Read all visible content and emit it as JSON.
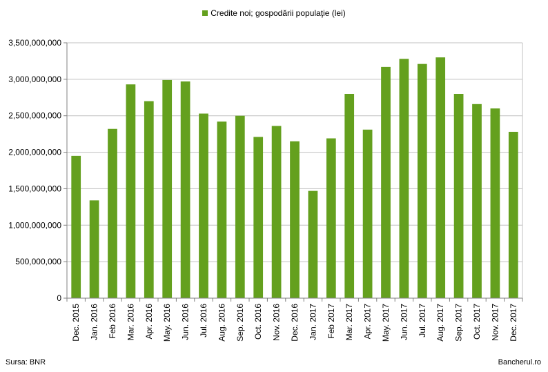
{
  "chart_data": {
    "type": "bar",
    "legend": "Credite noi; gospodării populaţie (lei)",
    "legend_position": "top",
    "bar_color": "#64a01e",
    "categories": [
      "Dec. 2015",
      "Jan. 2016",
      "Feb 2016",
      "Mar. 2016",
      "Apr. 2016",
      "May. 2016",
      "Jun. 2016",
      "Jul. 2016",
      "Aug. 2016",
      "Sep. 2016",
      "Oct. 2016",
      "Nov. 2016",
      "Dec. 2016",
      "Jan. 2017",
      "Feb 2017",
      "Mar. 2017",
      "Apr. 2017",
      "May. 2017",
      "Jun. 2017",
      "Jul. 2017",
      "Aug. 2017",
      "Sep. 2017",
      "Oct. 2017",
      "Nov. 2017",
      "Dec. 2017"
    ],
    "values": [
      1950000000,
      1340000000,
      2320000000,
      2930000000,
      2700000000,
      2990000000,
      2970000000,
      2530000000,
      2420000000,
      2500000000,
      2210000000,
      2360000000,
      2150000000,
      1470000000,
      2190000000,
      2800000000,
      2310000000,
      3170000000,
      3280000000,
      3210000000,
      3300000000,
      2800000000,
      2660000000,
      2600000000,
      2280000000
    ],
    "ylim": [
      0,
      3500000000
    ],
    "yticks": [
      0,
      500000000,
      1000000000,
      1500000000,
      2000000000,
      2500000000,
      3000000000,
      3500000000
    ],
    "ytick_labels": [
      "0",
      "500,000,000",
      "1,000,000,000",
      "1,500,000,000",
      "2,000,000,000",
      "2,500,000,000",
      "3,000,000,000",
      "3,500,000,000"
    ],
    "grid": true
  },
  "footer": {
    "source": "Sursa: BNR",
    "brand": "Bancherul.ro"
  }
}
